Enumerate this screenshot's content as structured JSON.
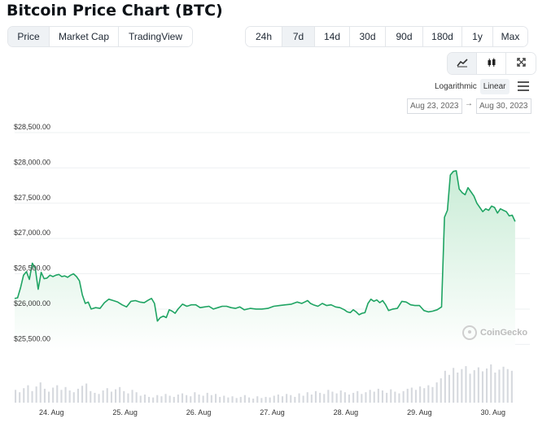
{
  "title": "Bitcoin Price Chart (BTC)",
  "view_tabs": [
    {
      "label": "Price",
      "active": true
    },
    {
      "label": "Market Cap",
      "active": false
    },
    {
      "label": "TradingView",
      "active": false
    }
  ],
  "range_tabs": [
    {
      "label": "24h",
      "active": false
    },
    {
      "label": "7d",
      "active": true
    },
    {
      "label": "14d",
      "active": false
    },
    {
      "label": "30d",
      "active": false
    },
    {
      "label": "90d",
      "active": false
    },
    {
      "label": "180d",
      "active": false
    },
    {
      "label": "1y",
      "active": false
    },
    {
      "label": "Max",
      "active": false
    }
  ],
  "chart_type_icons": [
    "line-chart-icon",
    "candlestick-icon",
    "fullscreen-icon"
  ],
  "scale": {
    "log_label": "Logarithmic",
    "linear_label": "Linear",
    "active": "Linear"
  },
  "date_range": {
    "from": "Aug 23, 2023",
    "to": "Aug 30, 2023",
    "separator": "→"
  },
  "watermark": "CoinGecko",
  "colors": {
    "line": "#1fa463",
    "area": "#e6f6ec",
    "volume": "#d6d9de",
    "grid": "#eef0f2"
  },
  "chart_data": {
    "type": "area",
    "ylim": [
      25400,
      28650
    ],
    "y_ticks": [
      {
        "value": 25500,
        "label": "$25,500.00"
      },
      {
        "value": 26000,
        "label": "$26,000.00"
      },
      {
        "value": 26500,
        "label": "$26,500.00"
      },
      {
        "value": 27000,
        "label": "$27,000.00"
      },
      {
        "value": 27500,
        "label": "$27,500.00"
      },
      {
        "value": 28000,
        "label": "$28,000.00"
      },
      {
        "value": 28500,
        "label": "$28,500.00"
      }
    ],
    "xlim": [
      0,
      7
    ],
    "x_ticks": [
      {
        "value": 0.5,
        "label": "24. Aug"
      },
      {
        "value": 1.5,
        "label": "25. Aug"
      },
      {
        "value": 2.5,
        "label": "26. Aug"
      },
      {
        "value": 3.5,
        "label": "27. Aug"
      },
      {
        "value": 4.5,
        "label": "28. Aug"
      },
      {
        "value": 5.5,
        "label": "29. Aug"
      },
      {
        "value": 6.5,
        "label": "30. Aug"
      }
    ],
    "price": [
      [
        0.0,
        26150
      ],
      [
        0.04,
        26160
      ],
      [
        0.08,
        26300
      ],
      [
        0.12,
        26480
      ],
      [
        0.16,
        26530
      ],
      [
        0.2,
        26420
      ],
      [
        0.24,
        26650
      ],
      [
        0.28,
        26580
      ],
      [
        0.32,
        26280
      ],
      [
        0.36,
        26520
      ],
      [
        0.4,
        26430
      ],
      [
        0.44,
        26440
      ],
      [
        0.48,
        26480
      ],
      [
        0.52,
        26460
      ],
      [
        0.56,
        26480
      ],
      [
        0.6,
        26490
      ],
      [
        0.64,
        26460
      ],
      [
        0.68,
        26470
      ],
      [
        0.72,
        26450
      ],
      [
        0.76,
        26480
      ],
      [
        0.8,
        26500
      ],
      [
        0.84,
        26460
      ],
      [
        0.88,
        26400
      ],
      [
        0.92,
        26200
      ],
      [
        0.96,
        26080
      ],
      [
        1.0,
        26100
      ],
      [
        1.04,
        26000
      ],
      [
        1.1,
        26020
      ],
      [
        1.16,
        26010
      ],
      [
        1.22,
        26090
      ],
      [
        1.28,
        26140
      ],
      [
        1.34,
        26120
      ],
      [
        1.4,
        26100
      ],
      [
        1.46,
        26060
      ],
      [
        1.52,
        26030
      ],
      [
        1.58,
        26110
      ],
      [
        1.64,
        26120
      ],
      [
        1.7,
        26100
      ],
      [
        1.76,
        26090
      ],
      [
        1.82,
        26130
      ],
      [
        1.86,
        26150
      ],
      [
        1.9,
        26080
      ],
      [
        1.94,
        25830
      ],
      [
        1.98,
        25880
      ],
      [
        2.02,
        25900
      ],
      [
        2.06,
        25880
      ],
      [
        2.1,
        25990
      ],
      [
        2.14,
        25970
      ],
      [
        2.18,
        25940
      ],
      [
        2.22,
        26000
      ],
      [
        2.28,
        26070
      ],
      [
        2.34,
        26040
      ],
      [
        2.4,
        26060
      ],
      [
        2.46,
        26060
      ],
      [
        2.52,
        26020
      ],
      [
        2.58,
        26030
      ],
      [
        2.64,
        26040
      ],
      [
        2.7,
        26000
      ],
      [
        2.76,
        26020
      ],
      [
        2.82,
        26040
      ],
      [
        2.88,
        26040
      ],
      [
        2.94,
        26020
      ],
      [
        3.0,
        26010
      ],
      [
        3.06,
        26030
      ],
      [
        3.12,
        25990
      ],
      [
        3.2,
        26010
      ],
      [
        3.28,
        26000
      ],
      [
        3.36,
        26000
      ],
      [
        3.44,
        26010
      ],
      [
        3.52,
        26040
      ],
      [
        3.6,
        26050
      ],
      [
        3.68,
        26060
      ],
      [
        3.76,
        26070
      ],
      [
        3.84,
        26100
      ],
      [
        3.9,
        26080
      ],
      [
        3.94,
        26100
      ],
      [
        3.98,
        26120
      ],
      [
        4.02,
        26080
      ],
      [
        4.06,
        26060
      ],
      [
        4.12,
        26040
      ],
      [
        4.18,
        26080
      ],
      [
        4.24,
        26050
      ],
      [
        4.3,
        26060
      ],
      [
        4.36,
        26030
      ],
      [
        4.42,
        26020
      ],
      [
        4.48,
        25990
      ],
      [
        4.52,
        25960
      ],
      [
        4.56,
        25950
      ],
      [
        4.6,
        25990
      ],
      [
        4.64,
        25960
      ],
      [
        4.68,
        25920
      ],
      [
        4.72,
        25940
      ],
      [
        4.76,
        25950
      ],
      [
        4.8,
        26080
      ],
      [
        4.84,
        26140
      ],
      [
        4.88,
        26110
      ],
      [
        4.92,
        26130
      ],
      [
        4.96,
        26090
      ],
      [
        5.0,
        26120
      ],
      [
        5.04,
        26060
      ],
      [
        5.08,
        25980
      ],
      [
        5.14,
        26000
      ],
      [
        5.2,
        26010
      ],
      [
        5.26,
        26110
      ],
      [
        5.32,
        26100
      ],
      [
        5.38,
        26060
      ],
      [
        5.44,
        26050
      ],
      [
        5.5,
        26050
      ],
      [
        5.56,
        25980
      ],
      [
        5.62,
        25960
      ],
      [
        5.68,
        25970
      ],
      [
        5.74,
        25990
      ],
      [
        5.8,
        26030
      ],
      [
        5.84,
        27300
      ],
      [
        5.88,
        27400
      ],
      [
        5.92,
        27900
      ],
      [
        5.96,
        27950
      ],
      [
        6.0,
        27960
      ],
      [
        6.04,
        27700
      ],
      [
        6.08,
        27650
      ],
      [
        6.12,
        27620
      ],
      [
        6.16,
        27720
      ],
      [
        6.2,
        27660
      ],
      [
        6.24,
        27600
      ],
      [
        6.28,
        27500
      ],
      [
        6.32,
        27440
      ],
      [
        6.36,
        27380
      ],
      [
        6.4,
        27420
      ],
      [
        6.44,
        27400
      ],
      [
        6.48,
        27460
      ],
      [
        6.52,
        27440
      ],
      [
        6.56,
        27360
      ],
      [
        6.6,
        27420
      ],
      [
        6.64,
        27400
      ],
      [
        6.68,
        27380
      ],
      [
        6.72,
        27320
      ],
      [
        6.76,
        27330
      ],
      [
        6.8,
        27240
      ]
    ],
    "volume": [
      22,
      18,
      25,
      30,
      20,
      28,
      35,
      24,
      19,
      26,
      30,
      22,
      27,
      21,
      18,
      24,
      29,
      33,
      20,
      17,
      15,
      21,
      25,
      19,
      23,
      27,
      20,
      16,
      22,
      18,
      12,
      14,
      10,
      9,
      13,
      11,
      15,
      12,
      10,
      14,
      16,
      13,
      11,
      18,
      14,
      12,
      17,
      13,
      15,
      10,
      12,
      9,
      11,
      8,
      10,
      13,
      9,
      7,
      11,
      8,
      10,
      9,
      12,
      14,
      11,
      15,
      13,
      10,
      16,
      12,
      18,
      14,
      20,
      17,
      15,
      22,
      19,
      16,
      21,
      18,
      14,
      17,
      20,
      15,
      18,
      22,
      19,
      24,
      21,
      17,
      23,
      19,
      16,
      20,
      24,
      26,
      22,
      28,
      25,
      30,
      27,
      35,
      42,
      55,
      48,
      60,
      52,
      58,
      63,
      50,
      56,
      61,
      54,
      59,
      66,
      52,
      57,
      62,
      58,
      55
    ]
  }
}
